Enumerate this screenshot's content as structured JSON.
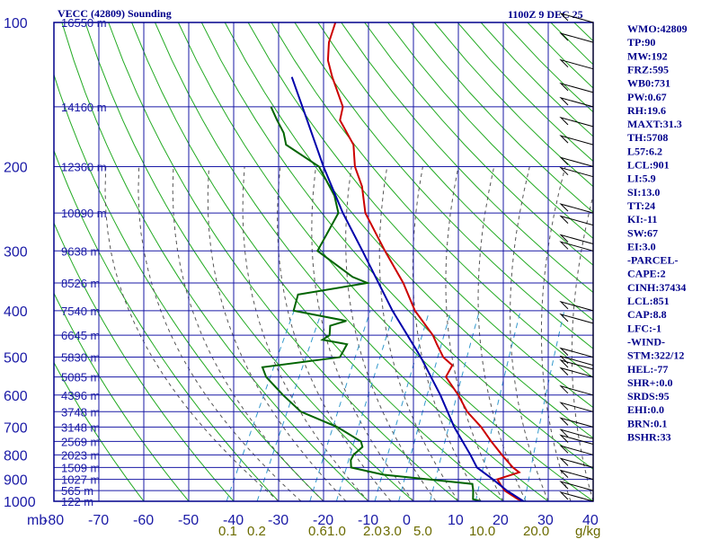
{
  "header": {
    "title": "VECC (42809) Sounding",
    "time": "1100Z  9 DEC 25"
  },
  "indices": [
    "WMO:42809",
    "TP:90",
    "MW:192",
    "FRZ:595",
    "WB0:731",
    "PW:0.67",
    "RH:19.6",
    "MAXT:31.3",
    "TH:5708",
    "L57:6.2",
    "LCL:901",
    "LI:5.9",
    "SI:13.0",
    "TT:24",
    "KI:-11",
    "SW:67",
    "EI:3.0",
    "-PARCEL-",
    "CAPE:2",
    "CINH:37434",
    "LCL:851",
    "CAP:8.8",
    "LFC:-1",
    "-WIND-",
    "STM:322/12",
    "HEL:-77",
    "SHR+:0.0",
    "SRDS:95",
    "EHI:0.0",
    "BRN:0.1",
    "BSHR:33"
  ],
  "colors": {
    "frame": "#00008b",
    "grid": "#1a1aa6",
    "dry_adiabat": "#22aa22",
    "temperature": "#cc0000",
    "dewpoint": "#006400",
    "parcel": "#0000aa",
    "moist_adiabat": "#555555",
    "mixing_ratio": "#3399cc"
  },
  "chart_data": {
    "type": "line",
    "pressure_axis_unit": "mb",
    "pressure_levels": [
      100,
      200,
      300,
      400,
      500,
      600,
      700,
      800,
      900,
      1000
    ],
    "pressure_labels": [
      "100",
      "200",
      "300",
      "400",
      "500",
      "600",
      "700",
      "800",
      "900",
      "1000"
    ],
    "temperature_ticks": [
      -80,
      -70,
      -60,
      -50,
      -40,
      -30,
      -20,
      -10,
      0,
      10,
      20,
      30,
      40
    ],
    "temperature_tick_labels": [
      "-80",
      "-70",
      "-60",
      "-50",
      "-40",
      "-30",
      "-20",
      "-10",
      "0",
      "10",
      "20",
      "30",
      "40"
    ],
    "xlim": [
      -80,
      40
    ],
    "ylim_mb": [
      1000,
      100
    ],
    "y_scale": "log",
    "height_levels": [
      {
        "p": 100,
        "label": "16550 m"
      },
      {
        "p": 150,
        "label": "14160 m"
      },
      {
        "p": 200,
        "label": "12360 m"
      },
      {
        "p": 250,
        "label": "10890 m"
      },
      {
        "p": 300,
        "label": "9638 m"
      },
      {
        "p": 350,
        "label": "8526 m"
      },
      {
        "p": 400,
        "label": "7540 m"
      },
      {
        "p": 450,
        "label": "6645 m"
      },
      {
        "p": 500,
        "label": "5830 m"
      },
      {
        "p": 550,
        "label": "5085 m"
      },
      {
        "p": 600,
        "label": "4396 m"
      },
      {
        "p": 650,
        "label": "3748 m"
      },
      {
        "p": 700,
        "label": "3148 m"
      },
      {
        "p": 750,
        "label": "2569 m"
      },
      {
        "p": 800,
        "label": "2023 m"
      },
      {
        "p": 850,
        "label": "1509 m"
      },
      {
        "p": 900,
        "label": "1027 m"
      },
      {
        "p": 950,
        "label": "565 m"
      },
      {
        "p": 1000,
        "label": "122 m"
      }
    ],
    "mixing_ratio_labels": [
      {
        "w": 0.1,
        "label": "0.1"
      },
      {
        "w": 0.2,
        "label": "0.2"
      },
      {
        "w": 0.6,
        "label": "0.6"
      },
      {
        "w": 1.0,
        "label": "1.0"
      },
      {
        "w": 2.0,
        "label": "2.0"
      },
      {
        "w": 3.0,
        "label": "3.0"
      },
      {
        "w": 5.0,
        "label": "5.0"
      },
      {
        "w": 10.0,
        "label": "10.0"
      },
      {
        "w": 20.0,
        "label": "20.0"
      }
    ],
    "mixing_ratio_unit": "g/kg",
    "series": [
      {
        "key": "temperature",
        "values": [
          [
            1000,
            24.5
          ],
          [
            990,
            23
          ],
          [
            950,
            19
          ],
          [
            925,
            17.5
          ],
          [
            900,
            16
          ],
          [
            870,
            20
          ],
          [
            850,
            18
          ],
          [
            800,
            14
          ],
          [
            750,
            10
          ],
          [
            700,
            6
          ],
          [
            650,
            1
          ],
          [
            600,
            -3
          ],
          [
            550,
            -8
          ],
          [
            520,
            -8
          ],
          [
            500,
            -11
          ],
          [
            470,
            -14
          ],
          [
            450,
            -16
          ],
          [
            400,
            -23
          ],
          [
            350,
            -29
          ],
          [
            300,
            -37
          ],
          [
            250,
            -46
          ],
          [
            220,
            -50
          ],
          [
            200,
            -54
          ],
          [
            180,
            -57
          ],
          [
            160,
            -63
          ],
          [
            150,
            -64
          ],
          [
            130,
            -70
          ],
          [
            120,
            -73
          ],
          [
            110,
            -75
          ],
          [
            100,
            -76
          ]
        ]
      },
      {
        "key": "dewpoint",
        "values": [
          [
            1000,
            15
          ],
          [
            990,
            13
          ],
          [
            950,
            12
          ],
          [
            920,
            11
          ],
          [
            880,
            -10
          ],
          [
            850,
            -18
          ],
          [
            820,
            -19
          ],
          [
            800,
            -19
          ],
          [
            770,
            -18
          ],
          [
            750,
            -19
          ],
          [
            700,
            -26
          ],
          [
            650,
            -36
          ],
          [
            600,
            -42
          ],
          [
            550,
            -48
          ],
          [
            525,
            -50
          ],
          [
            500,
            -34
          ],
          [
            480,
            -34
          ],
          [
            470,
            -34
          ],
          [
            460,
            -40
          ],
          [
            450,
            -39
          ],
          [
            430,
            -40
          ],
          [
            420,
            -37
          ],
          [
            400,
            -50
          ],
          [
            370,
            -51
          ],
          [
            350,
            -37
          ],
          [
            340,
            -41
          ],
          [
            300,
            -52
          ],
          [
            250,
            -52
          ],
          [
            230,
            -55
          ],
          [
            200,
            -62
          ],
          [
            180,
            -72
          ],
          [
            170,
            -74
          ],
          [
            160,
            -77
          ],
          [
            150,
            -80
          ]
        ]
      },
      {
        "key": "parcel",
        "values": [
          [
            1000,
            24.5
          ],
          [
            950,
            19.5
          ],
          [
            900,
            15
          ],
          [
            850,
            10
          ],
          [
            800,
            7
          ],
          [
            700,
            0
          ],
          [
            600,
            -7
          ],
          [
            500,
            -16
          ],
          [
            400,
            -28
          ],
          [
            300,
            -42
          ],
          [
            250,
            -51
          ],
          [
            200,
            -61
          ],
          [
            150,
            -73
          ],
          [
            130,
            -79
          ]
        ]
      }
    ],
    "wind_levels_mb": [
      100,
      110,
      125,
      140,
      150,
      165,
      180,
      200,
      210,
      250,
      265,
      290,
      300,
      400,
      425,
      500,
      520,
      530,
      550,
      600,
      650,
      700,
      740,
      760,
      800,
      850,
      900,
      950,
      1000
    ]
  }
}
